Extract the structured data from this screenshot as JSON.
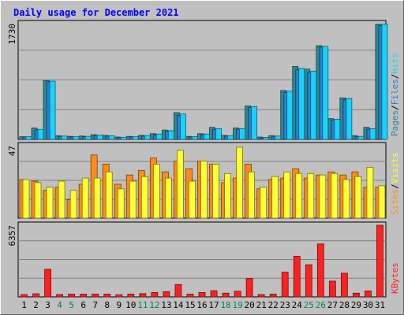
{
  "chart_data": {
    "type": "bar",
    "title": "Daily usage for December 2021",
    "categories": [
      "1",
      "2",
      "3",
      "4",
      "5",
      "6",
      "7",
      "8",
      "9",
      "10",
      "11",
      "12",
      "13",
      "14",
      "15",
      "16",
      "17",
      "18",
      "19",
      "20",
      "21",
      "22",
      "23",
      "24",
      "25",
      "26",
      "27",
      "28",
      "29",
      "30",
      "31"
    ],
    "weekend_days": [
      "4",
      "5",
      "11",
      "12",
      "18",
      "19",
      "25",
      "26"
    ],
    "panels": [
      {
        "name": "requests",
        "scale_label": "1730",
        "ylim": [
          0,
          1730
        ],
        "series": [
          {
            "name": "Pages",
            "color": "#2e8b8b",
            "values": [
              40,
              170,
              880,
              55,
              45,
              50,
              70,
              60,
              35,
              45,
              60,
              85,
              140,
              400,
              45,
              85,
              180,
              60,
              170,
              500,
              35,
              55,
              730,
              1090,
              1050,
              1400,
              310,
              620,
              55,
              180,
              1720
            ]
          },
          {
            "name": "Files",
            "color": "#2b7fd4",
            "values": [
              35,
              140,
              860,
              45,
              35,
              40,
              60,
              50,
              30,
              35,
              50,
              70,
              120,
              360,
              35,
              70,
              150,
              50,
              150,
              480,
              25,
              45,
              700,
              1040,
              1000,
              1380,
              290,
              590,
              40,
              150,
              1700
            ]
          },
          {
            "name": "Hits",
            "color": "#1ad2ff",
            "values": [
              40,
              150,
              870,
              50,
              40,
              45,
              65,
              55,
              32,
              40,
              55,
              80,
              130,
              380,
              40,
              80,
              160,
              55,
              160,
              490,
              30,
              50,
              720,
              1060,
              1020,
              1390,
              300,
              610,
              45,
              160,
              1720
            ]
          }
        ]
      },
      {
        "name": "visitors",
        "scale_label": "47",
        "ylim": [
          0,
          47
        ],
        "series": [
          {
            "name": "Sites",
            "color": "#ff8c1a",
            "values": [
              25,
              24,
              18,
              20,
              12,
              22,
              41,
              35,
              22,
              28,
              31,
              39,
              30,
              37,
              32,
              37,
              35,
              23,
              26,
              35,
              19,
              25,
              26,
              32,
              26,
              28,
              30,
              28,
              30,
              20,
              20
            ]
          },
          {
            "name": "Visits",
            "color": "#ffff33",
            "values": [
              25,
              23,
              20,
              24,
              18,
              26,
              26,
              30,
              19,
              24,
              27,
              35,
              26,
              44,
              24,
              37,
              35,
              29,
              46,
              30,
              20,
              27,
              30,
              29,
              29,
              28,
              29,
              25,
              27,
              33,
              21
            ]
          }
        ]
      },
      {
        "name": "volume",
        "scale_label": "6357",
        "ylim": [
          0,
          6357
        ],
        "series": [
          {
            "name": "KBytes",
            "color": "#ff2020",
            "values": [
              210,
              280,
              2450,
              210,
              250,
              250,
              250,
              250,
              190,
              250,
              290,
              390,
              460,
              1100,
              250,
              390,
              550,
              330,
              500,
              1630,
              210,
              250,
              2200,
              3600,
              2850,
              4700,
              1400,
              2100,
              330,
              530,
              6357
            ]
          }
        ]
      }
    ],
    "legend_separator": "/",
    "grid": true
  },
  "colors": {
    "background": "#c0c0c0",
    "plot": "#c0c0c0",
    "title": "#0000ff",
    "weekend_label": "#00805a",
    "weekday_label": "#000000"
  }
}
